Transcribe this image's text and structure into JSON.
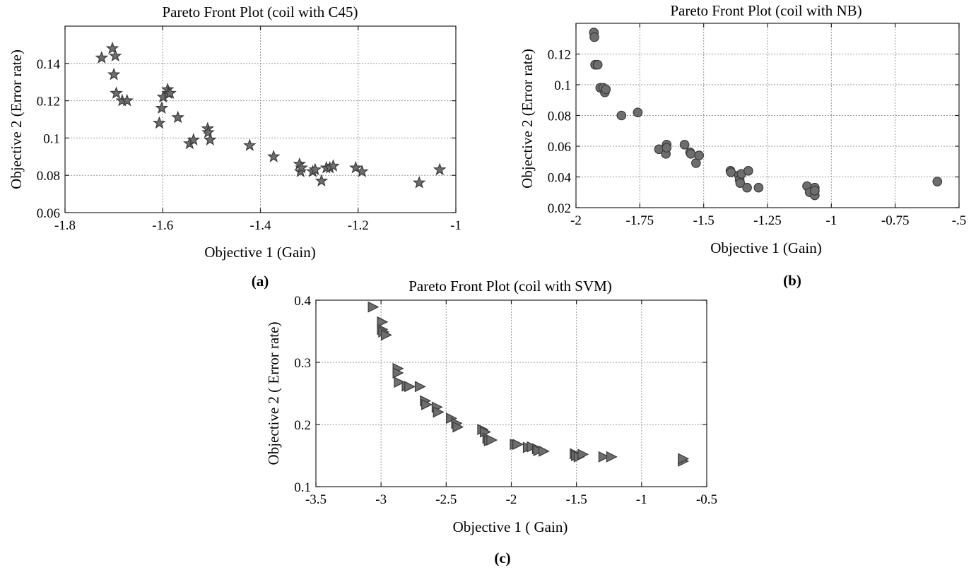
{
  "chart_data": [
    {
      "type": "scatter",
      "panel": "(a)",
      "marker": "star",
      "title": "Pareto Front Plot (coil with C45)",
      "xlabel": "Objective 1 (Gain)",
      "ylabel": "Objective 2 (Error rate)",
      "xlim": [
        -1.8,
        -1.0
      ],
      "ylim": [
        0.06,
        0.16
      ],
      "xticks": [
        "-1.8",
        "-1.6",
        "-1.4",
        "-1.2",
        "-1"
      ],
      "xtick_values": [
        -1.8,
        -1.6,
        -1.4,
        -1.2,
        -1.0
      ],
      "yticks": [
        "0.06",
        "0.08",
        "0.1",
        "0.12",
        "0.14"
      ],
      "ytick_values": [
        0.06,
        0.08,
        0.1,
        0.12,
        0.14
      ],
      "grid": true,
      "points": [
        [
          -1.725,
          0.143
        ],
        [
          -1.703,
          0.148
        ],
        [
          -1.697,
          0.144
        ],
        [
          -1.7,
          0.134
        ],
        [
          -1.695,
          0.124
        ],
        [
          -1.683,
          0.12
        ],
        [
          -1.673,
          0.12
        ],
        [
          -1.607,
          0.108
        ],
        [
          -1.602,
          0.116
        ],
        [
          -1.599,
          0.122
        ],
        [
          -1.59,
          0.126
        ],
        [
          -1.589,
          0.124
        ],
        [
          -1.585,
          0.124
        ],
        [
          -1.569,
          0.111
        ],
        [
          -1.545,
          0.097
        ],
        [
          -1.537,
          0.099
        ],
        [
          -1.508,
          0.105
        ],
        [
          -1.507,
          0.103
        ],
        [
          -1.503,
          0.099
        ],
        [
          -1.422,
          0.096
        ],
        [
          -1.373,
          0.09
        ],
        [
          -1.32,
          0.086
        ],
        [
          -1.318,
          0.082
        ],
        [
          -1.316,
          0.084
        ],
        [
          -1.293,
          0.082
        ],
        [
          -1.288,
          0.083
        ],
        [
          -1.275,
          0.077
        ],
        [
          -1.265,
          0.084
        ],
        [
          -1.258,
          0.084
        ],
        [
          -1.251,
          0.085
        ],
        [
          -1.205,
          0.084
        ],
        [
          -1.192,
          0.082
        ],
        [
          -1.075,
          0.076
        ],
        [
          -1.033,
          0.083
        ]
      ]
    },
    {
      "type": "scatter",
      "panel": "(b)",
      "marker": "circle",
      "title": "Pareto Front Plot (coil with NB)",
      "xlabel": "Objective 1 (Gain)",
      "ylabel": "Objective 2 (Error rate)",
      "xlim": [
        -2.0,
        -0.5
      ],
      "ylim": [
        0.02,
        0.14
      ],
      "xticks": [
        "-2",
        "-1.75",
        "-1.5",
        "-1.25",
        "-1",
        "-0.75",
        "-.5"
      ],
      "xtick_values": [
        -2.0,
        -1.75,
        -1.5,
        -1.25,
        -1.0,
        -0.75,
        -0.5
      ],
      "yticks": [
        "0.02",
        "0.04",
        "0.06",
        "0.08",
        "0.1",
        "0.12"
      ],
      "ytick_values": [
        0.02,
        0.04,
        0.06,
        0.08,
        0.1,
        0.12
      ],
      "grid": true,
      "points": [
        [
          -1.93,
          0.134
        ],
        [
          -1.928,
          0.131
        ],
        [
          -1.925,
          0.113
        ],
        [
          -1.915,
          0.113
        ],
        [
          -1.905,
          0.098
        ],
        [
          -1.893,
          0.098
        ],
        [
          -1.887,
          0.095
        ],
        [
          -1.883,
          0.097
        ],
        [
          -1.822,
          0.08
        ],
        [
          -1.758,
          0.082
        ],
        [
          -1.675,
          0.058
        ],
        [
          -1.648,
          0.055
        ],
        [
          -1.645,
          0.061
        ],
        [
          -1.645,
          0.059
        ],
        [
          -1.575,
          0.061
        ],
        [
          -1.553,
          0.056
        ],
        [
          -1.55,
          0.055
        ],
        [
          -1.53,
          0.049
        ],
        [
          -1.518,
          0.054
        ],
        [
          -1.395,
          0.044
        ],
        [
          -1.393,
          0.043
        ],
        [
          -1.362,
          0.041
        ],
        [
          -1.359,
          0.038
        ],
        [
          -1.357,
          0.036
        ],
        [
          -1.352,
          0.042
        ],
        [
          -1.33,
          0.033
        ],
        [
          -1.325,
          0.044
        ],
        [
          -1.285,
          0.033
        ],
        [
          -1.095,
          0.034
        ],
        [
          -1.085,
          0.03
        ],
        [
          -1.065,
          0.033
        ],
        [
          -1.065,
          0.031
        ],
        [
          -1.065,
          0.028
        ],
        [
          -1.065,
          0.031
        ],
        [
          -0.585,
          0.037
        ]
      ]
    },
    {
      "type": "scatter",
      "panel": "(c)",
      "marker": "triangle-right",
      "title": "Pareto Front Plot (coil with SVM)",
      "xlabel": "Objective 1 ( Gain)",
      "ylabel": "Objective 2 ( Error rate)",
      "xlim": [
        -3.5,
        -0.5
      ],
      "ylim": [
        0.1,
        0.4
      ],
      "xticks": [
        "-3.5",
        "-3",
        "-2.5",
        "-2",
        "-1.5",
        "-1",
        "-0.5"
      ],
      "xtick_values": [
        -3.5,
        -3.0,
        -2.5,
        -2.0,
        -1.5,
        -1.0,
        -0.5
      ],
      "yticks": [
        "0.1",
        "0.2",
        "0.3",
        "0.4"
      ],
      "ytick_values": [
        0.1,
        0.2,
        0.3,
        0.4
      ],
      "grid": true,
      "points": [
        [
          -3.06,
          0.389
        ],
        [
          -2.99,
          0.365
        ],
        [
          -2.99,
          0.353
        ],
        [
          -2.98,
          0.349
        ],
        [
          -2.96,
          0.344
        ],
        [
          -2.87,
          0.29
        ],
        [
          -2.87,
          0.283
        ],
        [
          -2.86,
          0.268
        ],
        [
          -2.8,
          0.262
        ],
        [
          -2.78,
          0.261
        ],
        [
          -2.7,
          0.261
        ],
        [
          -2.66,
          0.238
        ],
        [
          -2.65,
          0.232
        ],
        [
          -2.57,
          0.228
        ],
        [
          -2.56,
          0.22
        ],
        [
          -2.46,
          0.21
        ],
        [
          -2.42,
          0.202
        ],
        [
          -2.41,
          0.196
        ],
        [
          -2.22,
          0.192
        ],
        [
          -2.2,
          0.188
        ],
        [
          -2.18,
          0.178
        ],
        [
          -2.17,
          0.174
        ],
        [
          -2.15,
          0.175
        ],
        [
          -1.97,
          0.168
        ],
        [
          -1.95,
          0.168
        ],
        [
          -1.87,
          0.163
        ],
        [
          -1.84,
          0.164
        ],
        [
          -1.8,
          0.161
        ],
        [
          -1.79,
          0.158
        ],
        [
          -1.75,
          0.157
        ],
        [
          -1.51,
          0.153
        ],
        [
          -1.5,
          0.15
        ],
        [
          -1.48,
          0.148
        ],
        [
          -1.45,
          0.152
        ],
        [
          -1.29,
          0.148
        ],
        [
          -1.23,
          0.148
        ],
        [
          -0.68,
          0.141
        ],
        [
          -0.68,
          0.145
        ]
      ]
    }
  ]
}
